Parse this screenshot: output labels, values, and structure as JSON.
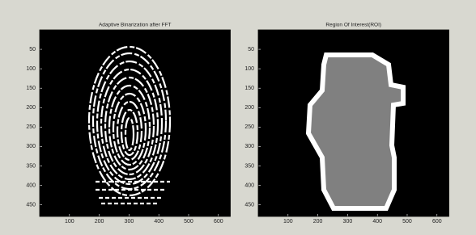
{
  "chart_data": [
    {
      "type": "image",
      "title": "Adaptive Binarization after FFT",
      "xlim": [
        0,
        640
      ],
      "ylim": [
        0,
        480
      ],
      "xticks": [
        100,
        200,
        300,
        400,
        500,
        600
      ],
      "yticks": [
        50,
        100,
        150,
        200,
        250,
        300,
        350,
        400,
        450
      ]
    },
    {
      "type": "image",
      "title": "Region Of Interest(ROI)",
      "xlim": [
        0,
        640
      ],
      "ylim": [
        0,
        480
      ],
      "xticks": [
        100,
        200,
        300,
        400,
        500,
        600
      ],
      "yticks": [
        50,
        100,
        150,
        200,
        250,
        300,
        350,
        400,
        450
      ]
    }
  ]
}
